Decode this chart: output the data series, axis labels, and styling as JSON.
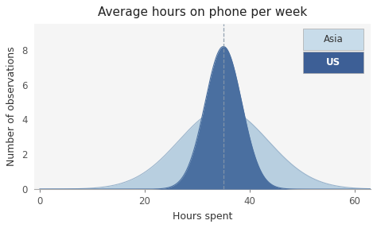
{
  "title": "Average hours on phone per week",
  "xlabel": "Hours spent",
  "ylabel": "Number of observations",
  "xlim": [
    -1,
    63
  ],
  "ylim": [
    0,
    9.5
  ],
  "xticks": [
    0,
    20,
    40,
    60
  ],
  "yticks": [
    0,
    2,
    4,
    6,
    8
  ],
  "mean": 35,
  "us_std": 3.5,
  "us_peak": 8.2,
  "asia_std": 8.5,
  "asia_peak": 4.6,
  "us_color_fill": "#4a6fa0",
  "us_color_line": "#4a6fa0",
  "asia_color_fill": "#b8cfe0",
  "asia_color_line": "#9ab4cc",
  "dashed_line_color": "#8899aa",
  "plot_bg_color": "#f5f5f5",
  "fig_bg_color": "#ffffff",
  "legend_asia_label": "Asia",
  "legend_us_label": "US",
  "legend_asia_bg": "#c8dcea",
  "legend_us_bg": "#3d5f96",
  "title_fontsize": 11,
  "axis_label_fontsize": 9,
  "tick_fontsize": 8.5
}
